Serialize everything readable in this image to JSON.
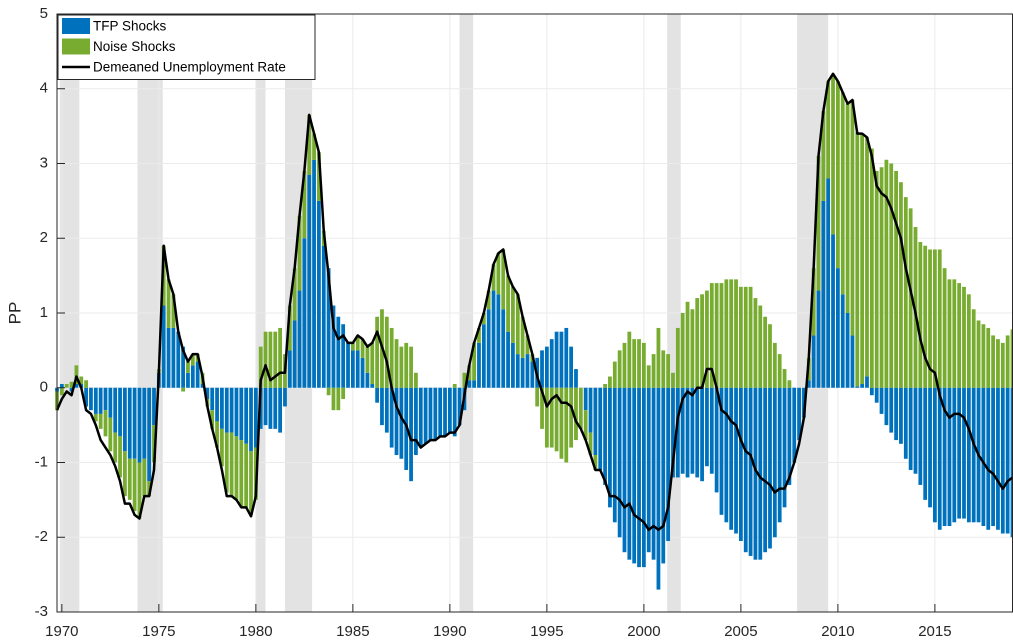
{
  "chart_data": {
    "type": "bar",
    "y_label": "PP",
    "xlim": [
      1969.75,
      2019
    ],
    "ylim": [
      -3,
      5
    ],
    "xticks": [
      1970,
      1975,
      1980,
      1985,
      1990,
      1995,
      2000,
      2005,
      2010,
      2015
    ],
    "yticks": [
      -3,
      -2,
      -1,
      0,
      1,
      2,
      3,
      4,
      5
    ],
    "grid": true,
    "legend": "upper left",
    "recession_color": "#e3e3e3",
    "recessions": [
      [
        1969.9,
        1970.9
      ],
      [
        1973.9,
        1975.2
      ],
      [
        1980.0,
        1980.5
      ],
      [
        1981.5,
        1982.9
      ],
      [
        1990.5,
        1991.2
      ],
      [
        2001.2,
        2001.9
      ],
      [
        2007.9,
        2009.5
      ]
    ],
    "x": [
      1969.75,
      1970,
      1970.25,
      1970.5,
      1970.75,
      1971,
      1971.25,
      1971.5,
      1971.75,
      1972,
      1972.25,
      1972.5,
      1972.75,
      1973,
      1973.25,
      1973.5,
      1973.75,
      1974,
      1974.25,
      1974.5,
      1974.75,
      1975,
      1975.25,
      1975.5,
      1975.75,
      1976,
      1976.25,
      1976.5,
      1976.75,
      1977,
      1977.25,
      1977.5,
      1977.75,
      1978,
      1978.25,
      1978.5,
      1978.75,
      1979,
      1979.25,
      1979.5,
      1979.75,
      1980,
      1980.25,
      1980.5,
      1980.75,
      1981,
      1981.25,
      1981.5,
      1981.75,
      1982,
      1982.25,
      1982.5,
      1982.75,
      1983,
      1983.25,
      1983.5,
      1983.75,
      1984,
      1984.25,
      1984.5,
      1984.75,
      1985,
      1985.25,
      1985.5,
      1985.75,
      1986,
      1986.25,
      1986.5,
      1986.75,
      1987,
      1987.25,
      1987.5,
      1987.75,
      1988,
      1988.25,
      1988.5,
      1988.75,
      1989,
      1989.25,
      1989.5,
      1989.75,
      1990,
      1990.25,
      1990.5,
      1990.75,
      1991,
      1991.25,
      1991.5,
      1991.75,
      1992,
      1992.25,
      1992.5,
      1992.75,
      1993,
      1993.25,
      1993.5,
      1993.75,
      1994,
      1994.25,
      1994.5,
      1994.75,
      1995,
      1995.25,
      1995.5,
      1995.75,
      1996,
      1996.25,
      1996.5,
      1996.75,
      1997,
      1997.25,
      1997.5,
      1997.75,
      1998,
      1998.25,
      1998.5,
      1998.75,
      1999,
      1999.25,
      1999.5,
      1999.75,
      2000,
      2000.25,
      2000.5,
      2000.75,
      2001,
      2001.25,
      2001.5,
      2001.75,
      2002,
      2002.25,
      2002.5,
      2002.75,
      2003,
      2003.25,
      2003.5,
      2003.75,
      2004,
      2004.25,
      2004.5,
      2004.75,
      2005,
      2005.25,
      2005.5,
      2005.75,
      2006,
      2006.25,
      2006.5,
      2006.75,
      2007,
      2007.25,
      2007.5,
      2007.75,
      2008,
      2008.25,
      2008.5,
      2008.75,
      2009,
      2009.25,
      2009.5,
      2009.75,
      2010,
      2010.25,
      2010.5,
      2010.75,
      2011,
      2011.25,
      2011.5,
      2011.75,
      2012,
      2012.25,
      2012.5,
      2012.75,
      2013,
      2013.25,
      2013.5,
      2013.75,
      2014,
      2014.25,
      2014.5,
      2014.75,
      2015,
      2015.25,
      2015.5,
      2015.75,
      2016,
      2016.25,
      2016.5,
      2016.75,
      2017,
      2017.25,
      2017.5,
      2017.75,
      2018,
      2018.25,
      2018.5,
      2018.75,
      2019
    ],
    "series": [
      {
        "name": "TFP Shocks",
        "type": "bar",
        "color": "#0072bd",
        "values": [
          -0.05,
          0.05,
          0,
          -0.05,
          0.05,
          0.05,
          -0.25,
          -0.3,
          -0.35,
          -0.35,
          -0.3,
          -0.4,
          -0.6,
          -0.65,
          -0.85,
          -0.95,
          -0.95,
          -1.0,
          -0.95,
          -1.25,
          -0.5,
          0.2,
          1.1,
          0.8,
          0.8,
          0.75,
          0.55,
          0.2,
          0.3,
          0.35,
          0.05,
          -0.15,
          -0.3,
          -0.45,
          -0.55,
          -0.6,
          -0.6,
          -0.65,
          -0.7,
          -0.75,
          -0.85,
          -0.8,
          -0.55,
          -0.5,
          -0.55,
          -0.55,
          -0.6,
          -0.25,
          0.5,
          0.9,
          1.3,
          2.0,
          2.85,
          3.05,
          2.5,
          1.9,
          1.6,
          1.1,
          0.95,
          0.85,
          0.6,
          0.5,
          0.5,
          0.4,
          0.2,
          0.05,
          -0.2,
          -0.5,
          -0.6,
          -0.8,
          -0.9,
          -0.95,
          -1.1,
          -1.25,
          -0.9,
          -0.8,
          -0.75,
          -0.7,
          -0.7,
          -0.65,
          -0.65,
          -0.6,
          -0.65,
          -0.5,
          -0.3,
          0.1,
          0.1,
          0.6,
          0.85,
          1.05,
          1.3,
          1.25,
          1.05,
          0.75,
          0.6,
          0.45,
          0.4,
          0.45,
          0.35,
          0.4,
          0.5,
          0.55,
          0.65,
          0.75,
          0.75,
          0.8,
          0.55,
          0.25,
          0.0,
          -0.3,
          -0.6,
          -0.9,
          -1.1,
          -1.3,
          -1.6,
          -1.8,
          -2.0,
          -2.2,
          -2.3,
          -2.35,
          -2.4,
          -2.4,
          -2.2,
          -2.3,
          -2.7,
          -2.35,
          -2.05,
          -1.2,
          -1.2,
          -1.15,
          -1.2,
          -1.15,
          -1.2,
          -1.25,
          -1.05,
          -1.15,
          -1.4,
          -1.7,
          -1.8,
          -1.9,
          -1.95,
          -2.05,
          -2.2,
          -2.25,
          -2.3,
          -2.3,
          -2.2,
          -2.15,
          -2.0,
          -1.8,
          -1.6,
          -1.3,
          -1.0,
          -0.7,
          -0.4,
          0.1,
          0.7,
          1.3,
          2.5,
          2.8,
          2.05,
          1.6,
          1.25,
          1.0,
          0.7,
          0.02,
          0.05,
          0.15,
          -0.1,
          -0.2,
          -0.35,
          -0.5,
          -0.6,
          -0.7,
          -0.75,
          -0.95,
          -1.1,
          -1.15,
          -1.3,
          -1.5,
          -1.6,
          -1.8,
          -1.9,
          -1.85,
          -1.85,
          -1.8,
          -1.75,
          -1.75,
          -1.8,
          -1.8,
          -1.8,
          -1.85,
          -1.9,
          -1.85,
          -1.9,
          -1.95,
          -1.95,
          -2.0
        ]
      },
      {
        "name": "Noise Shocks",
        "type": "bar",
        "color": "#77ac30",
        "values": [
          -0.25,
          -0.1,
          0.05,
          0.08,
          0.25,
          0.1,
          0.1,
          0.0,
          -0.1,
          -0.2,
          -0.35,
          -0.45,
          -0.4,
          -0.55,
          -0.6,
          -0.55,
          -0.7,
          -0.75,
          -0.5,
          -0.2,
          -0.5,
          0.05,
          0.8,
          0.65,
          0.45,
          0,
          -0.05,
          0.15,
          0.15,
          0.1,
          0.15,
          -0.1,
          -0.25,
          -0.35,
          -0.5,
          -0.8,
          -0.85,
          -0.85,
          -0.9,
          -0.85,
          -0.85,
          -0.7,
          0.55,
          0.75,
          0.75,
          0.75,
          0.8,
          0.45,
          0.6,
          0.7,
          1.0,
          0.9,
          0.8,
          0.35,
          0.65,
          0.2,
          -0.1,
          -0.3,
          -0.3,
          -0.15,
          0.0,
          0.1,
          0.2,
          0.25,
          0.35,
          0.55,
          0.95,
          1.05,
          0.95,
          0.8,
          0.65,
          0.55,
          0.6,
          0.55,
          0.2,
          0,
          0,
          0,
          0,
          0,
          0,
          0,
          0.05,
          0,
          0.2,
          0.2,
          0.5,
          0.2,
          0.15,
          0.25,
          0.35,
          0.55,
          0.8,
          0.75,
          0.75,
          0.8,
          0.55,
          0.25,
          0.1,
          -0.25,
          -0.55,
          -0.8,
          -0.8,
          -0.85,
          -0.95,
          -1.0,
          -0.8,
          -0.7,
          -0.55,
          -0.4,
          -0.3,
          -0.2,
          0,
          0.05,
          0.15,
          0.35,
          0.5,
          0.6,
          0.75,
          0.65,
          0.65,
          0.6,
          0.3,
          0.45,
          0.8,
          0.5,
          0.45,
          0.2,
          0.8,
          1.0,
          1.15,
          1.05,
          1.2,
          1.25,
          1.3,
          1.4,
          1.4,
          1.4,
          1.45,
          1.45,
          1.45,
          1.35,
          1.35,
          1.35,
          1.2,
          1.1,
          0.95,
          0.85,
          0.6,
          0.45,
          0.25,
          0.1,
          0,
          0,
          0,
          0.3,
          0.9,
          1.8,
          1.2,
          1.3,
          2.15,
          2.5,
          2.7,
          2.8,
          3.15,
          3.4,
          3.35,
          3.2,
          3.2,
          2.9,
          2.95,
          3.05,
          3.0,
          2.9,
          2.75,
          2.55,
          2.4,
          2.15,
          1.95,
          1.9,
          1.85,
          1.85,
          1.85,
          1.6,
          1.45,
          1.45,
          1.4,
          1.35,
          1.25,
          1.05,
          0.9,
          0.85,
          0.8,
          0.7,
          0.65,
          0.6,
          0.7,
          0.78
        ]
      },
      {
        "name": "Demeaned Unemployment Rate",
        "type": "line",
        "color": "#000000",
        "values": [
          -0.3,
          -0.15,
          -0.05,
          -0.1,
          0.15,
          0.0,
          -0.3,
          -0.35,
          -0.5,
          -0.7,
          -0.8,
          -0.9,
          -1.05,
          -1.25,
          -1.55,
          -1.55,
          -1.7,
          -1.75,
          -1.45,
          -1.45,
          -1.1,
          0.2,
          1.9,
          1.45,
          1.25,
          0.75,
          0.5,
          0.35,
          0.45,
          0.45,
          0.15,
          -0.25,
          -0.55,
          -0.8,
          -1.1,
          -1.45,
          -1.45,
          -1.5,
          -1.6,
          -1.6,
          -1.72,
          -1.45,
          0.1,
          0.3,
          0.1,
          0.15,
          0.2,
          0.2,
          1.1,
          1.6,
          2.3,
          2.9,
          3.65,
          3.4,
          3.15,
          2.1,
          1.5,
          0.8,
          0.65,
          0.7,
          0.6,
          0.6,
          0.7,
          0.65,
          0.55,
          0.6,
          0.75,
          0.55,
          0.35,
          0.0,
          -0.25,
          -0.4,
          -0.5,
          -0.7,
          -0.7,
          -0.8,
          -0.75,
          -0.7,
          -0.7,
          -0.65,
          -0.65,
          -0.6,
          -0.6,
          -0.5,
          -0.1,
          0.3,
          0.6,
          0.8,
          1.0,
          1.3,
          1.65,
          1.8,
          1.85,
          1.5,
          1.35,
          1.25,
          0.95,
          0.7,
          0.45,
          0.15,
          -0.05,
          -0.25,
          -0.15,
          -0.1,
          -0.2,
          -0.2,
          -0.25,
          -0.45,
          -0.55,
          -0.7,
          -0.9,
          -1.1,
          -1.1,
          -1.25,
          -1.45,
          -1.45,
          -1.5,
          -1.6,
          -1.55,
          -1.7,
          -1.75,
          -1.8,
          -1.9,
          -1.85,
          -1.9,
          -1.85,
          -1.6,
          -1.0,
          -0.4,
          -0.15,
          -0.05,
          -0.1,
          0.0,
          0.0,
          0.25,
          0.25,
          0.0,
          -0.3,
          -0.35,
          -0.45,
          -0.5,
          -0.7,
          -0.85,
          -0.9,
          -1.1,
          -1.2,
          -1.25,
          -1.3,
          -1.4,
          -1.35,
          -1.35,
          -1.2,
          -1.0,
          -0.75,
          -0.4,
          0.4,
          1.6,
          3.1,
          3.7,
          4.1,
          4.2,
          4.1,
          3.95,
          3.8,
          3.85,
          3.4,
          3.4,
          3.35,
          3.1,
          2.7,
          2.6,
          2.55,
          2.4,
          2.2,
          2.0,
          1.6,
          1.3,
          1.0,
          0.65,
          0.4,
          0.25,
          0.2,
          -0.1,
          -0.3,
          -0.4,
          -0.35,
          -0.35,
          -0.4,
          -0.55,
          -0.75,
          -0.9,
          -1.0,
          -1.1,
          -1.15,
          -1.25,
          -1.35,
          -1.25,
          -1.2
        ]
      }
    ]
  }
}
